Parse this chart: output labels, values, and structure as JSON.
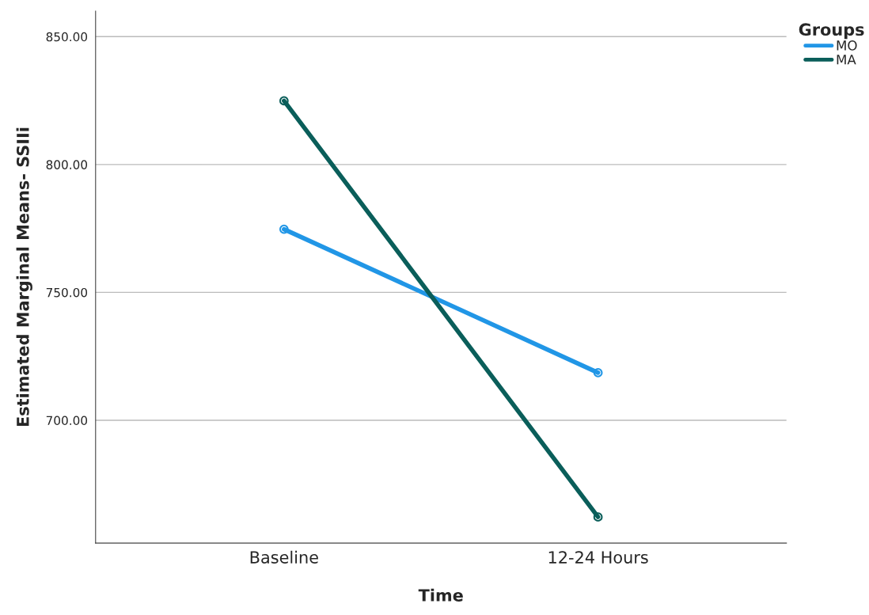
{
  "chart_data": {
    "type": "line",
    "xlabel": "Time",
    "ylabel": "Estimated Marginal Means- SSIIi",
    "legend_title": "Groups",
    "categories": [
      "Baseline",
      "12-24 Hours"
    ],
    "series": [
      {
        "name": "MO",
        "color": "#2196e6",
        "values": [
          774.7,
          718.6
        ]
      },
      {
        "name": "MA",
        "color": "#0a5e5a",
        "values": [
          824.9,
          662.2
        ]
      }
    ],
    "ylim": [
      652,
      860
    ],
    "yticks": [
      {
        "value": 700,
        "label": "700.00"
      },
      {
        "value": 750,
        "label": "750.00"
      },
      {
        "value": 800,
        "label": "800.00"
      },
      {
        "value": 850,
        "label": "850.00"
      }
    ],
    "grid": "y",
    "legend": "top right",
    "marker": "circle",
    "line_style": "solid"
  }
}
